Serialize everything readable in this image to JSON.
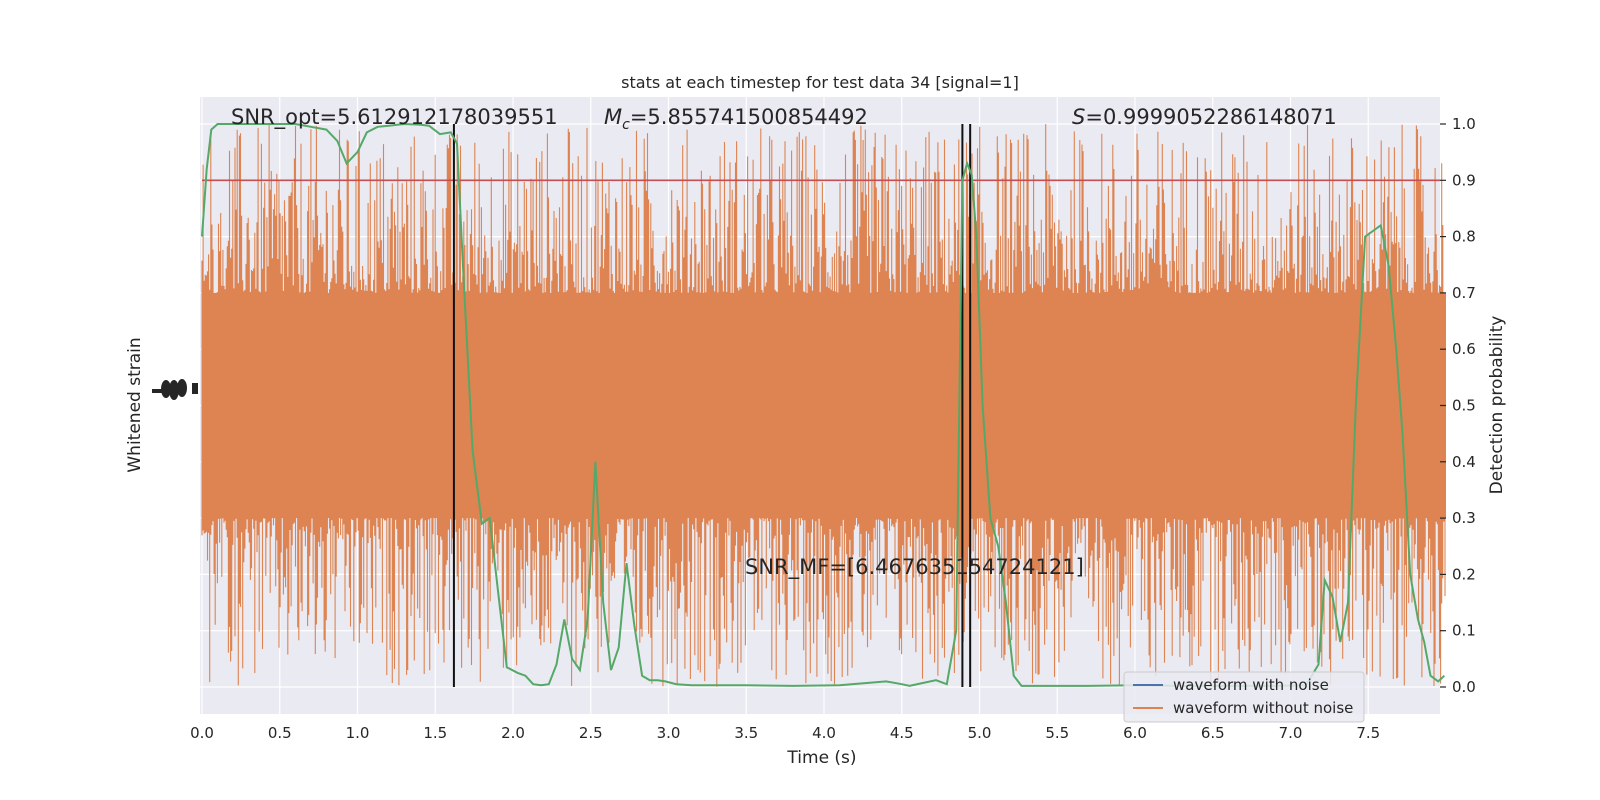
{
  "chart_data": {
    "type": "line",
    "title": "stats at each timestep for test data 34 [signal=1]",
    "xlabel": "Time (s)",
    "ylabel_left": "Whitened strain",
    "ylabel_right": "Detection probability",
    "xlim": [
      0.0,
      8.0
    ],
    "ylim_right": [
      -0.05,
      1.05
    ],
    "grid": true,
    "legend_placement": "lower right",
    "x_tick_labels": [
      "0.0",
      "0.5",
      "1.0",
      "1.5",
      "2.0",
      "2.5",
      "3.0",
      "3.5",
      "4.0",
      "4.5",
      "5.0",
      "5.5",
      "6.0",
      "6.5",
      "7.0",
      "7.5"
    ],
    "x_tick_values": [
      0.0,
      0.5,
      1.0,
      1.5,
      2.0,
      2.5,
      3.0,
      3.5,
      4.0,
      4.5,
      5.0,
      5.5,
      6.0,
      6.5,
      7.0,
      7.5
    ],
    "y_right_tick_labels": [
      "0.0",
      "0.1",
      "0.2",
      "0.3",
      "0.4",
      "0.5",
      "0.6",
      "0.7",
      "0.8",
      "0.9",
      "1.0"
    ],
    "y_right_tick_values": [
      0.0,
      0.1,
      0.2,
      0.3,
      0.4,
      0.5,
      0.6,
      0.7,
      0.8,
      0.9,
      1.0
    ],
    "annotations": {
      "snr_opt": "SNR_opt=5.612912178039551",
      "mc_symbol": "M",
      "mc_subscript": "c",
      "mc_value": "=5.855741500854492",
      "s_symbol": "S",
      "s_value": "=0.9999052286148071",
      "snr_mf": "SNR_MF=[6.467635154724121]"
    },
    "threshold": {
      "value": 0.9,
      "color": "#c44e52"
    },
    "vertical_lines": [
      1.62,
      4.89,
      4.94
    ],
    "strain_band": {
      "center": 0.5,
      "core_half_width": 0.2,
      "spike_max_half_width": 0.5,
      "color": "#dd8452"
    },
    "series": [
      {
        "name": "waveform with noise",
        "color": "#4c72b0"
      },
      {
        "name": "waveform without noise",
        "color": "#dd8452"
      },
      {
        "name": "",
        "color": "#55a868",
        "x": [
          0.0,
          0.03,
          0.06,
          0.1,
          0.2,
          0.3,
          0.4,
          0.5,
          0.6,
          0.7,
          0.8,
          0.87,
          0.93,
          1.0,
          1.06,
          1.13,
          1.2,
          1.3,
          1.4,
          1.46,
          1.53,
          1.6,
          1.64,
          1.68,
          1.74,
          1.8,
          1.85,
          1.9,
          1.96,
          2.03,
          2.08,
          2.13,
          2.18,
          2.23,
          2.28,
          2.33,
          2.38,
          2.43,
          2.48,
          2.53,
          2.58,
          2.63,
          2.68,
          2.73,
          2.78,
          2.83,
          2.88,
          2.93,
          2.98,
          3.05,
          3.15,
          3.3,
          3.5,
          3.8,
          4.1,
          4.4,
          4.5,
          4.55,
          4.65,
          4.72,
          4.79,
          4.85,
          4.89,
          4.92,
          4.95,
          4.98,
          5.02,
          5.07,
          5.12,
          5.17,
          5.22,
          5.27,
          5.33,
          5.5,
          5.7,
          6.0,
          6.3,
          6.6,
          6.9,
          7.1,
          7.18,
          7.22,
          7.27,
          7.32,
          7.37,
          7.42,
          7.48,
          7.53,
          7.58,
          7.63,
          7.68,
          7.72,
          7.77,
          7.82,
          7.86,
          7.9,
          7.95,
          7.99
        ],
        "y": [
          0.8,
          0.92,
          0.99,
          1.0,
          1.0,
          1.0,
          1.0,
          1.0,
          1.0,
          0.995,
          0.99,
          0.97,
          0.93,
          0.95,
          0.985,
          0.995,
          0.997,
          1.0,
          0.999,
          0.997,
          0.982,
          0.985,
          0.965,
          0.74,
          0.42,
          0.29,
          0.3,
          0.18,
          0.035,
          0.025,
          0.02,
          0.005,
          0.003,
          0.005,
          0.04,
          0.12,
          0.05,
          0.03,
          0.12,
          0.4,
          0.15,
          0.03,
          0.07,
          0.22,
          0.11,
          0.02,
          0.012,
          0.012,
          0.01,
          0.005,
          0.003,
          0.003,
          0.003,
          0.002,
          0.003,
          0.01,
          0.005,
          0.002,
          0.008,
          0.012,
          0.005,
          0.1,
          0.9,
          0.93,
          0.91,
          0.8,
          0.5,
          0.3,
          0.25,
          0.15,
          0.02,
          0.002,
          0.002,
          0.002,
          0.002,
          0.003,
          0.002,
          0.002,
          0.002,
          0.003,
          0.04,
          0.19,
          0.16,
          0.08,
          0.15,
          0.5,
          0.8,
          0.81,
          0.82,
          0.75,
          0.6,
          0.45,
          0.2,
          0.12,
          0.08,
          0.02,
          0.01,
          0.02
        ]
      }
    ]
  }
}
